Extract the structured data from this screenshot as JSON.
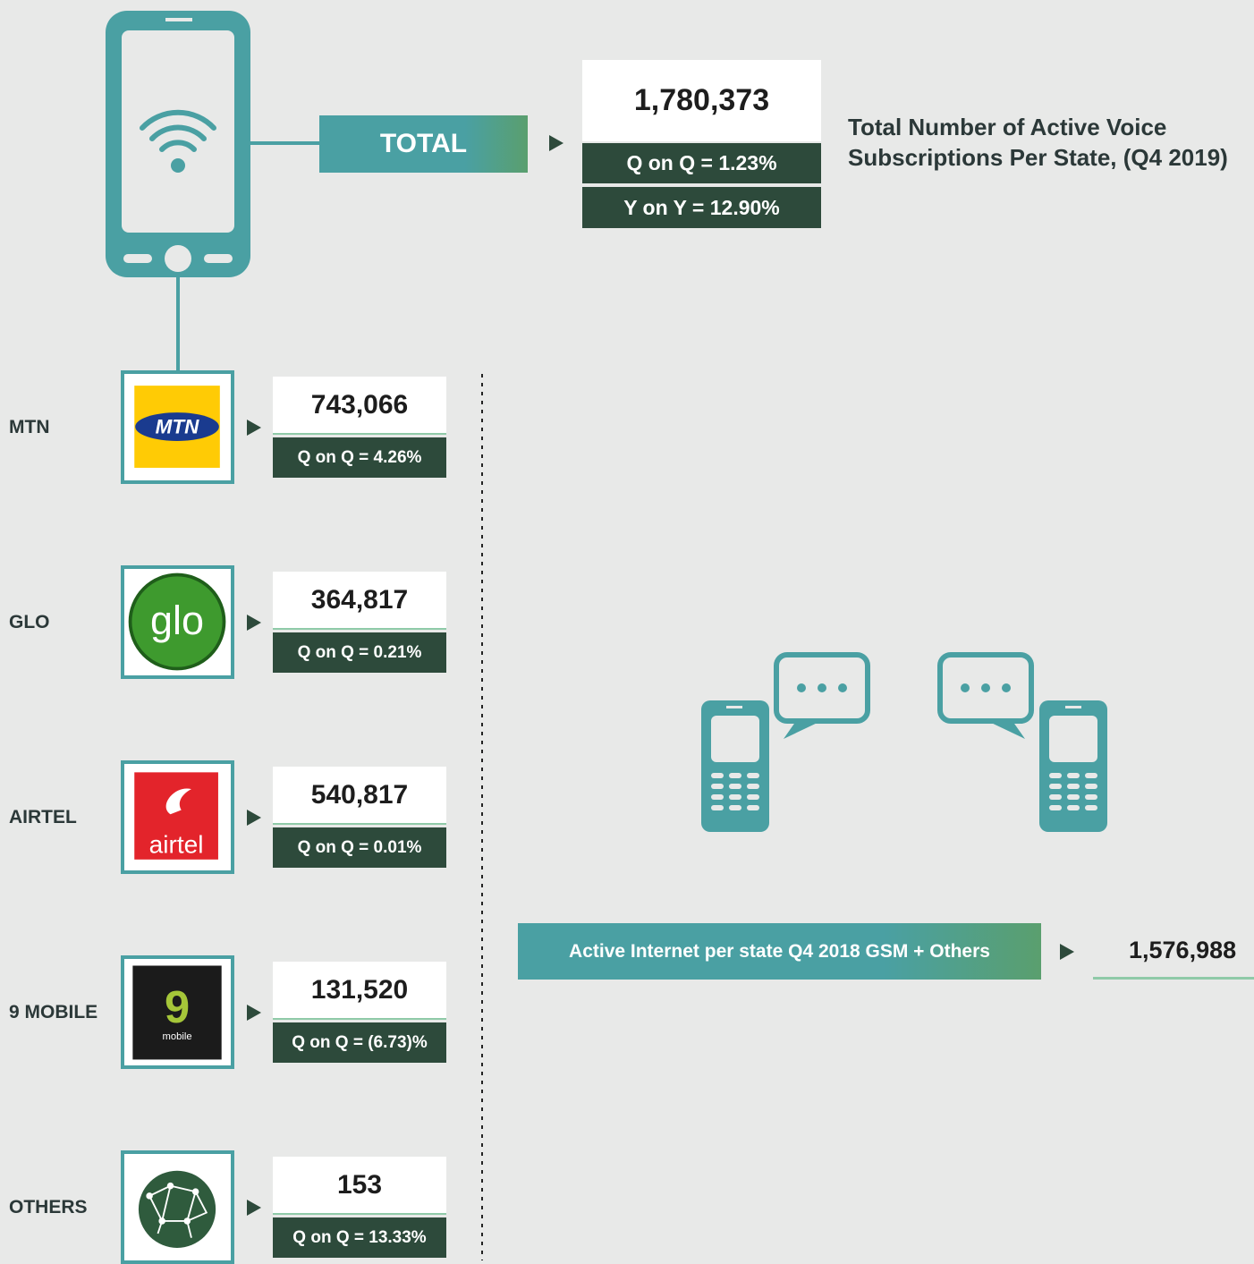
{
  "header": {
    "title_line1": "Total Number of Active Voice",
    "title_line2": "Subscriptions Per State, (Q4 2019)"
  },
  "total": {
    "label": "TOTAL",
    "value": "1,780,373",
    "qoq": "Q on Q = 1.23%",
    "yoy": "Y on Y = 12.90%"
  },
  "operators": [
    {
      "name": "MTN",
      "logo_text": "MTN",
      "value": "743,066",
      "qoq": "Q on Q = 4.26%"
    },
    {
      "name": "GLO",
      "logo_text": "glo",
      "value": "364,817",
      "qoq": "Q on Q = 0.21%"
    },
    {
      "name": "AIRTEL",
      "logo_text": "airtel",
      "value": "540,817",
      "qoq": "Q on Q = 0.01%"
    },
    {
      "name": "9 MOBILE",
      "logo_text": "9",
      "logo_subtext": "mobile",
      "value": "131,520",
      "qoq": "Q on Q = (6.73)%"
    },
    {
      "name": "OTHERS",
      "value": "153",
      "qoq": "Q on Q = 13.33%"
    }
  ],
  "internet": {
    "label": "Active Internet per state Q4 2018 GSM + Others",
    "value": "1,576,988"
  }
}
